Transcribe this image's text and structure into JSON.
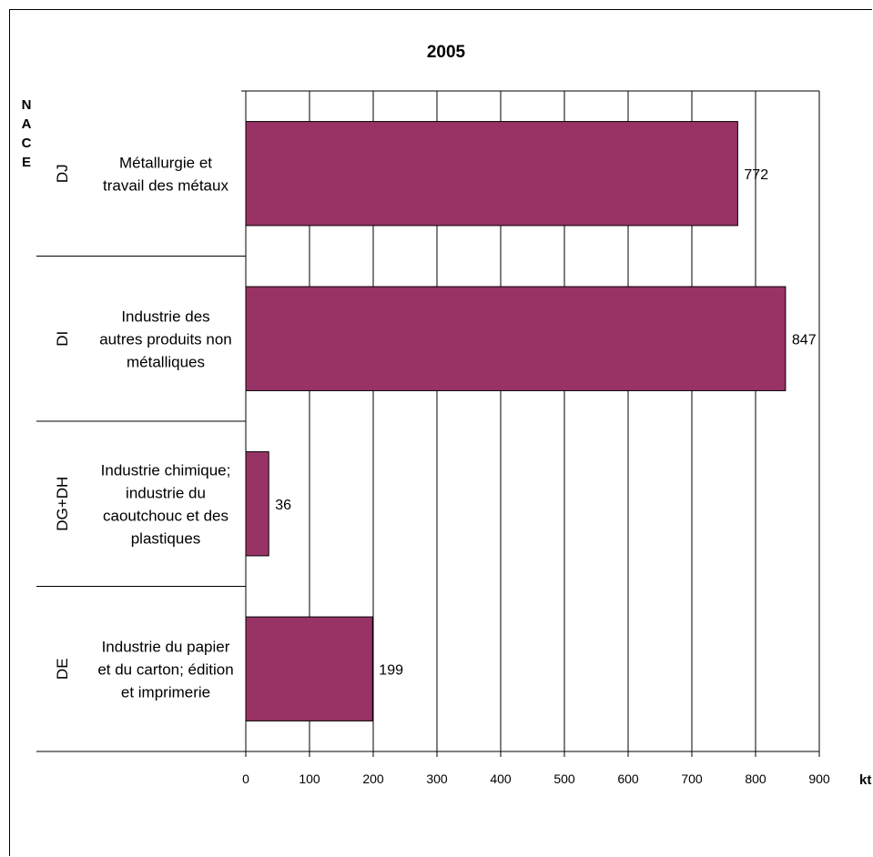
{
  "chart_data": {
    "type": "bar",
    "orientation": "horizontal",
    "title": "2005",
    "ylabel": "NACE",
    "xlabel": "kt",
    "xlim": [
      0,
      900
    ],
    "xticks": [
      0,
      100,
      200,
      300,
      400,
      500,
      600,
      700,
      800,
      900
    ],
    "grid": true,
    "categories": [
      {
        "code": "DJ",
        "name_lines": [
          "Métallurgie et",
          "travail des métaux"
        ]
      },
      {
        "code": "DI",
        "name_lines": [
          "Industrie des",
          "autres produits non",
          "métalliques"
        ]
      },
      {
        "code": "DG+DH",
        "name_lines": [
          "Industrie chimique;",
          "industrie du",
          "caoutchouc et des",
          "plastiques"
        ]
      },
      {
        "code": "DE",
        "name_lines": [
          "Industrie du papier",
          "et du carton; édition",
          "et imprimerie"
        ]
      }
    ],
    "values": [
      772,
      847,
      36,
      199
    ],
    "value_labels": [
      "772",
      "847",
      "36",
      "199"
    ],
    "colors": {
      "bar": "#993366",
      "bar_stroke": "#000000",
      "grid": "#000000"
    }
  }
}
